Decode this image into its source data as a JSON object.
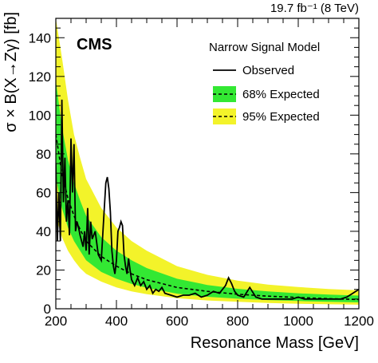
{
  "chart_data": {
    "type": "line",
    "experiment_label": "CMS",
    "lumi_label": "19.7 fb⁻¹ (8 TeV)",
    "xlabel": "Resonance Mass [GeV]",
    "ylabel": "σ × B(X→Zγ) [fb]",
    "xlim": [
      200,
      1200
    ],
    "ylim": [
      0,
      150
    ],
    "x_ticks": [
      200,
      400,
      600,
      800,
      1000,
      1200
    ],
    "y_ticks": [
      0,
      20,
      40,
      60,
      80,
      100,
      120,
      140
    ],
    "legend": {
      "title": "Narrow Signal Model",
      "placement": "top-right",
      "entries": [
        "Observed",
        "68% Expected",
        "95% Expected"
      ]
    },
    "colors": {
      "band95": "#f3f32a",
      "band68": "#33e833",
      "observed": "#000000",
      "expected": "#000000"
    },
    "series": [
      {
        "name": "Observed",
        "style": "solid",
        "x": [
          200,
          205,
          210,
          215,
          220,
          225,
          230,
          235,
          240,
          245,
          250,
          255,
          260,
          265,
          270,
          275,
          280,
          285,
          290,
          295,
          300,
          305,
          310,
          315,
          320,
          330,
          340,
          350,
          360,
          365,
          370,
          375,
          380,
          385,
          390,
          395,
          400,
          405,
          410,
          415,
          420,
          425,
          430,
          435,
          440,
          445,
          450,
          460,
          470,
          480,
          490,
          500,
          510,
          520,
          530,
          540,
          550,
          560,
          580,
          600,
          620,
          640,
          660,
          680,
          700,
          720,
          740,
          760,
          770,
          780,
          790,
          800,
          820,
          840,
          860,
          880,
          900,
          920,
          940,
          960,
          980,
          1000,
          1020,
          1040,
          1060,
          1080,
          1100,
          1120,
          1140,
          1160,
          1180,
          1200
        ],
        "y": [
          75,
          35,
          60,
          35,
          108,
          55,
          78,
          45,
          56,
          38,
          88,
          60,
          85,
          40,
          45,
          42,
          38,
          35,
          32,
          40,
          30,
          52,
          28,
          45,
          36,
          40,
          28,
          25,
          52,
          65,
          68,
          62,
          50,
          30,
          22,
          18,
          25,
          40,
          42,
          45,
          43,
          28,
          22,
          18,
          26,
          20,
          15,
          12,
          16,
          12,
          14,
          10,
          12,
          8,
          10,
          9,
          11,
          8,
          7,
          6,
          7,
          7,
          8,
          6,
          7,
          9,
          8,
          12,
          16,
          13,
          9,
          7,
          6,
          11,
          6,
          5,
          5,
          5,
          5,
          5,
          5,
          6,
          5,
          5,
          5,
          5,
          5,
          5,
          5,
          6,
          8,
          10
        ]
      },
      {
        "name": "Expected",
        "style": "dashed",
        "x": [
          200,
          220,
          240,
          260,
          280,
          300,
          350,
          400,
          450,
          500,
          600,
          700,
          800,
          900,
          1000,
          1100,
          1200
        ],
        "y": [
          90,
          70,
          57,
          48,
          41,
          35,
          27,
          22,
          18,
          15,
          11,
          9,
          7.5,
          6.5,
          5.8,
          5.2,
          4.8
        ]
      }
    ],
    "bands": {
      "x": [
        200,
        220,
        240,
        260,
        280,
        300,
        350,
        400,
        450,
        500,
        600,
        700,
        800,
        900,
        1000,
        1100,
        1200
      ],
      "band95_low": [
        48,
        37,
        30,
        25,
        21,
        18,
        14,
        11,
        9,
        7.5,
        5.5,
        4.3,
        3.6,
        3.0,
        2.6,
        2.3,
        2.1
      ],
      "band68_low": [
        68,
        52,
        42,
        35,
        30,
        25,
        19,
        15.5,
        12.8,
        10.8,
        7.8,
        6.2,
        5.2,
        4.5,
        4.0,
        3.6,
        3.3
      ],
      "band68_high": [
        118,
        94,
        77,
        65,
        56,
        48,
        37,
        30,
        25,
        21,
        15.5,
        12.3,
        10.3,
        9.0,
        8.0,
        7.3,
        6.8
      ],
      "band95_high": [
        160,
        130,
        108,
        90,
        78,
        67,
        52,
        42,
        35,
        30,
        22,
        17.5,
        14.5,
        12.5,
        11.2,
        10.2,
        9.5
      ]
    }
  }
}
